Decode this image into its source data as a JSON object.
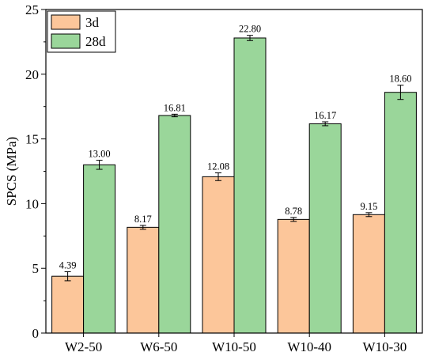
{
  "chart_data": {
    "type": "bar",
    "ylabel": "SPCS (MPa)",
    "ylim": [
      0,
      25
    ],
    "yticks": [
      0,
      5,
      10,
      15,
      20,
      25
    ],
    "categories": [
      "W2-50",
      "W6-50",
      "W10-50",
      "W10-40",
      "W10-30"
    ],
    "legend_position": "top-left",
    "grid": false,
    "series": [
      {
        "name": "3d",
        "color": "#fcc69a",
        "values": [
          4.39,
          8.17,
          12.08,
          8.78,
          9.15
        ],
        "errors": [
          0.35,
          0.15,
          0.3,
          0.15,
          0.15
        ],
        "labels": [
          "4.39",
          "8.17",
          "12.08",
          "8.78",
          "9.15"
        ]
      },
      {
        "name": "28d",
        "color": "#9ad69a",
        "values": [
          13.0,
          16.81,
          22.8,
          16.17,
          18.6
        ],
        "errors": [
          0.35,
          0.1,
          0.2,
          0.15,
          0.55
        ],
        "labels": [
          "13.00",
          "16.81",
          "22.80",
          "16.17",
          "18.60"
        ]
      }
    ]
  }
}
